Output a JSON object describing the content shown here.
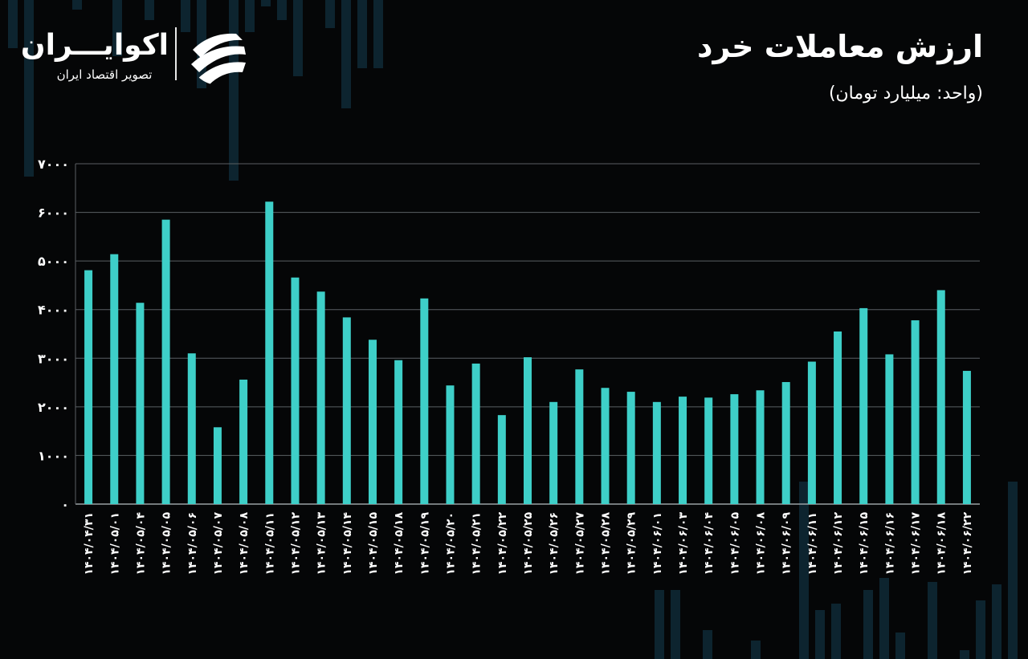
{
  "header": {
    "title": "ارزش معاملات خرد",
    "subtitle": "(واحد: میلیارد تومان)"
  },
  "brand": {
    "name": "اکوایـــران",
    "tagline": "تصویر اقتصاد ایران",
    "logo_icon": "ekoiran-logo-icon"
  },
  "colors": {
    "background": "#050607",
    "bar": "#3ecfc8",
    "grid": "#5a5f63",
    "text": "#ffffff",
    "background_candles": "#0f2a36"
  },
  "chart_data": {
    "type": "bar",
    "title": "ارزش معاملات خرد",
    "subtitle": "(واحد: میلیارد تومان)",
    "ylim": [
      0,
      7000
    ],
    "yticks": [
      0,
      1000,
      2000,
      3000,
      4000,
      5000,
      6000,
      7000
    ],
    "ytick_labels": [
      "۰",
      "۱۰۰۰",
      "۲۰۰۰",
      "۳۰۰۰",
      "۴۰۰۰",
      "۵۰۰۰",
      "۶۰۰۰",
      "۷۰۰۰"
    ],
    "grid": true,
    "categories": [
      "۱۴۰۴/۰۴/۳۱",
      "۱۴۰۴/۰۵/۰۱",
      "۱۴۰۴/۰۵/۰۴",
      "۱۴۰۴/۰۵/۰۵",
      "۱۴۰۴/۰۵/۰۶",
      "۱۴۰۴/۰۵/۰۷",
      "۱۴۰۴/۰۵/۰۸",
      "۱۴۰۴/۰۵/۱۱",
      "۱۴۰۴/۰۵/۱۲",
      "۱۴۰۴/۰۵/۱۳",
      "۱۴۰۴/۰۵/۱۴",
      "۱۴۰۴/۰۵/۱۵",
      "۱۴۰۴/۰۵/۱۸",
      "۱۴۰۴/۰۵/۱۹",
      "۱۴۰۴/۰۵/۲۰",
      "۱۴۰۴/۰۵/۲۱",
      "۱۴۰۴/۰۵/۲۲",
      "۱۴۰۴/۰۵/۲۵",
      "۱۴۰۴/۰۵/۲۶",
      "۱۴۰۴/۰۵/۲۷",
      "۱۴۰۴/۰۵/۲۸",
      "۱۴۰۴/۰۵/۲۹",
      "۱۴۰۴/۰۶/۰۱",
      "۱۴۰۴/۰۶/۰۳",
      "۱۴۰۴/۰۶/۰۴",
      "۱۴۰۴/۰۶/۰۵",
      "۱۴۰۴/۰۶/۰۸",
      "۱۴۰۴/۰۶/۰۹",
      "۱۴۰۴/۰۶/۱۱",
      "۱۴۰۴/۰۶/۱۲",
      "۱۴۰۴/۰۶/۱۵",
      "۱۴۰۴/۰۶/۱۶",
      "۱۴۰۴/۰۶/۱۷",
      "۱۴۰۴/۰۶/۱۸",
      "۱۴۰۴/۰۶/۲۲"
    ],
    "values": [
      4810,
      5140,
      4140,
      5850,
      3100,
      1580,
      2560,
      6220,
      4660,
      4370,
      3840,
      3380,
      2960,
      4230,
      2440,
      2890,
      1830,
      3020,
      2100,
      2770,
      2390,
      2310,
      2100,
      2210,
      2190,
      2260,
      2340,
      2510,
      2930,
      3550,
      4030,
      3080,
      3780,
      4400,
      2740
    ]
  }
}
